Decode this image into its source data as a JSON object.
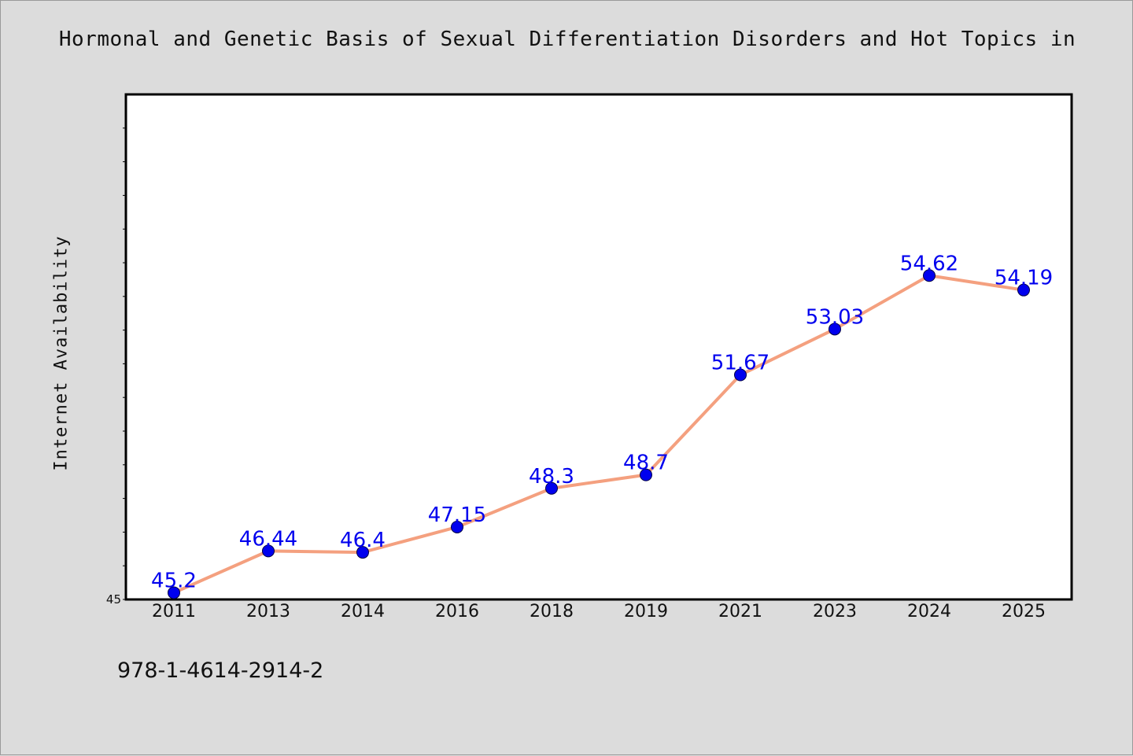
{
  "chart_data": {
    "type": "line",
    "title": "Hormonal and Genetic Basis of Sexual Differentiation Disorders and Hot Topics in",
    "ylabel": "Internet Availability",
    "xlabel": "",
    "categories": [
      "2011",
      "2013",
      "2014",
      "2016",
      "2018",
      "2019",
      "2021",
      "2023",
      "2024",
      "2025"
    ],
    "values": [
      45.2,
      46.44,
      46.4,
      47.15,
      48.3,
      48.7,
      51.67,
      53.03,
      54.62,
      54.19
    ],
    "value_labels": [
      "45.2",
      "46.44",
      "46.4",
      "47.15",
      "48.3",
      "48.7",
      "51.67",
      "53.03",
      "54.62",
      "54.19"
    ],
    "ylim": [
      45,
      60
    ],
    "y_tick_labels": [
      "45"
    ],
    "line_color": "#f4a07f",
    "marker_color": "#0000ee",
    "label_color": "#0000ee",
    "grid": false,
    "legend": "none"
  },
  "footer": {
    "code": "978-1-4614-2914-2"
  }
}
